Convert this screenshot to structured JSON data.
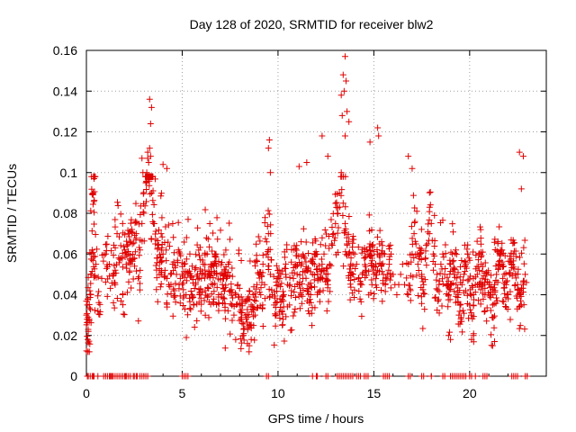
{
  "chart_data": {
    "type": "scatter",
    "title": "Day 128 of 2020, SRMTID for receiver blw2",
    "xlabel": "GPS time / hours",
    "ylabel": "SRMTID / TECUs",
    "xlim": [
      0,
      24
    ],
    "ylim": [
      0,
      0.16
    ],
    "grid": true,
    "marker": "+",
    "color": "#e00000",
    "x_ticks": [
      0,
      5,
      10,
      15,
      20
    ],
    "x_tick_labels": [
      "0",
      "5",
      "10",
      "15",
      "20"
    ],
    "y_ticks": [
      0,
      0.02,
      0.04,
      0.06,
      0.08,
      0.1,
      0.12,
      0.14,
      0.16
    ],
    "y_tick_labels": [
      "0",
      "0.02",
      "0.04",
      "0.06",
      "0.08",
      "0.1",
      "0.12",
      "0.14",
      "0.16"
    ],
    "series": [
      {
        "name": "SRMTID",
        "x": [
          0.0,
          0.05,
          0.1,
          0.15,
          0.2,
          0.25,
          0.3,
          0.35,
          0.4,
          0.5,
          0.6,
          0.8,
          1.0,
          1.2,
          1.4,
          1.5,
          1.6,
          1.8,
          1.9,
          2.0,
          2.1,
          2.2,
          2.3,
          2.4,
          2.5,
          2.6,
          2.7,
          2.8,
          2.9,
          3.0,
          3.1,
          3.2,
          3.3,
          3.35,
          3.4,
          3.5,
          3.6,
          3.7,
          3.8,
          3.9,
          4.0,
          4.1,
          4.2,
          4.3,
          4.4,
          4.5,
          4.6,
          4.7,
          4.8,
          4.9,
          5.0,
          5.1,
          5.2,
          5.3,
          5.4,
          5.5,
          5.6,
          5.7,
          5.8,
          5.9,
          6.0,
          6.1,
          6.2,
          6.3,
          6.4,
          6.5,
          6.6,
          6.7,
          6.8,
          6.9,
          7.0,
          7.1,
          7.2,
          7.3,
          7.4,
          7.5,
          7.6,
          7.7,
          7.8,
          7.9,
          8.0,
          8.1,
          8.2,
          8.3,
          8.4,
          8.5,
          8.6,
          8.7,
          8.8,
          8.9,
          9.0,
          9.1,
          9.2,
          9.3,
          9.4,
          9.5,
          9.6,
          9.7,
          9.8,
          9.9,
          10.0,
          10.1,
          10.2,
          10.3,
          10.4,
          10.5,
          10.6,
          10.7,
          10.8,
          10.9,
          11.0,
          11.1,
          11.2,
          11.3,
          11.4,
          11.5,
          11.6,
          11.7,
          11.8,
          11.9,
          12.0,
          12.1,
          12.2,
          12.3,
          12.4,
          12.5,
          12.6,
          12.7,
          12.8,
          12.9,
          13.0,
          13.1,
          13.2,
          13.3,
          13.4,
          13.5,
          13.6,
          13.7,
          13.8,
          13.9,
          14.0,
          14.1,
          14.2,
          14.3,
          14.4,
          14.5,
          14.6,
          14.7,
          14.8,
          14.9,
          15.0,
          15.1,
          15.2,
          15.3,
          15.4,
          15.5,
          15.6,
          15.7,
          15.8,
          15.9,
          16.0,
          16.1,
          16.2,
          16.3,
          16.4,
          16.5,
          16.6,
          16.8,
          17.0,
          17.1,
          17.2,
          17.3,
          17.4,
          17.5,
          17.6,
          17.7,
          17.8,
          17.9,
          18.0,
          18.1,
          18.2,
          18.3,
          18.4,
          18.5,
          18.6,
          18.7,
          18.8,
          18.9,
          19.0,
          19.1,
          19.2,
          19.3,
          19.4,
          19.5,
          19.6,
          19.7,
          19.8,
          19.9,
          20.0,
          20.1,
          20.2,
          20.3,
          20.4,
          20.5,
          20.6,
          20.7,
          20.8,
          20.9,
          21.0,
          21.1,
          21.2,
          21.3,
          21.4,
          21.5,
          21.6,
          21.7,
          21.8,
          21.9,
          22.0,
          22.1,
          22.2,
          22.3,
          22.4,
          22.5,
          22.6,
          22.7,
          22.8,
          22.9,
          3.3,
          3.35,
          3.4,
          3.2,
          3.25,
          3.15,
          13.4,
          13.5,
          13.55,
          13.6,
          13.7,
          13.5,
          13.45,
          9.55,
          9.6,
          9.5,
          15.2,
          15.25,
          11.1,
          11.5,
          12.3,
          12.6,
          2.9,
          2.95,
          4.0,
          4.2,
          16.8,
          17.0,
          22.6,
          22.8,
          22.7,
          13.3,
          13.35,
          14.8,
          8.5,
          8.6,
          8.4,
          20.1,
          20.2,
          21.3,
          21.2,
          18.9,
          19.0
        ],
        "y": [
          0.03,
          0.035,
          0.022,
          0.028,
          0.04,
          0.05,
          0.062,
          0.09,
          0.097,
          0.055,
          0.032,
          0.048,
          0.06,
          0.055,
          0.05,
          0.045,
          0.07,
          0.058,
          0.04,
          0.062,
          0.053,
          0.07,
          0.055,
          0.065,
          0.058,
          0.07,
          0.048,
          0.062,
          0.075,
          0.08,
          0.095,
          0.107,
          0.112,
          0.108,
          0.09,
          0.075,
          0.065,
          0.058,
          0.05,
          0.07,
          0.06,
          0.052,
          0.048,
          0.045,
          0.05,
          0.055,
          0.042,
          0.05,
          0.062,
          0.048,
          0.045,
          0.055,
          0.04,
          0.05,
          0.06,
          0.04,
          0.035,
          0.045,
          0.05,
          0.04,
          0.048,
          0.055,
          0.042,
          0.06,
          0.05,
          0.055,
          0.045,
          0.06,
          0.05,
          0.04,
          0.05,
          0.045,
          0.038,
          0.048,
          0.055,
          0.042,
          0.035,
          0.03,
          0.04,
          0.045,
          0.035,
          0.028,
          0.02,
          0.03,
          0.038,
          0.025,
          0.035,
          0.04,
          0.03,
          0.045,
          0.05,
          0.04,
          0.035,
          0.045,
          0.06,
          0.07,
          0.05,
          0.04,
          0.035,
          0.03,
          0.045,
          0.038,
          0.032,
          0.04,
          0.05,
          0.045,
          0.035,
          0.042,
          0.048,
          0.055,
          0.05,
          0.045,
          0.04,
          0.048,
          0.058,
          0.052,
          0.045,
          0.04,
          0.05,
          0.055,
          0.06,
          0.048,
          0.042,
          0.055,
          0.06,
          0.05,
          0.045,
          0.055,
          0.065,
          0.07,
          0.075,
          0.08,
          0.09,
          0.1,
          0.085,
          0.075,
          0.065,
          0.06,
          0.055,
          0.05,
          0.06,
          0.055,
          0.048,
          0.045,
          0.05,
          0.058,
          0.052,
          0.06,
          0.065,
          0.045,
          0.05,
          0.055,
          0.06,
          0.065,
          0.055,
          0.05,
          0.045,
          0.05,
          0.055,
          0.06,
          0.05,
          0.045,
          0.04,
          0.045,
          0.05,
          0.055,
          0.045,
          0.04,
          0.06,
          0.07,
          0.065,
          0.055,
          0.06,
          0.05,
          0.045,
          0.058,
          0.065,
          0.07,
          0.075,
          0.06,
          0.055,
          0.05,
          0.045,
          0.055,
          0.06,
          0.05,
          0.045,
          0.04,
          0.055,
          0.06,
          0.05,
          0.045,
          0.04,
          0.035,
          0.045,
          0.05,
          0.055,
          0.06,
          0.035,
          0.03,
          0.04,
          0.045,
          0.05,
          0.06,
          0.055,
          0.045,
          0.04,
          0.05,
          0.045,
          0.04,
          0.035,
          0.045,
          0.05,
          0.055,
          0.06,
          0.055,
          0.05,
          0.045,
          0.04,
          0.05,
          0.055,
          0.06,
          0.05,
          0.045,
          0.04,
          0.035,
          0.045,
          0.05,
          0.136,
          0.124,
          0.132,
          0.11,
          0.105,
          0.1,
          0.148,
          0.157,
          0.145,
          0.13,
          0.125,
          0.118,
          0.14,
          0.116,
          0.1,
          0.112,
          0.122,
          0.118,
          0.103,
          0.105,
          0.118,
          0.108,
          0.107,
          0.1,
          0.104,
          0.102,
          0.108,
          0.102,
          0.11,
          0.108,
          0.092,
          0.138,
          0.128,
          0.115,
          0.015,
          0.018,
          0.016,
          0.018,
          0.02,
          0.017,
          0.015,
          0.02,
          0.018
        ]
      }
    ],
    "zero_points_x": [
      0.05,
      0.1,
      0.2,
      0.3,
      0.35,
      0.4,
      0.6,
      0.9,
      1.0,
      1.1,
      1.2,
      1.25,
      1.3,
      1.35,
      1.4,
      1.5,
      1.6,
      1.7,
      1.8,
      1.9,
      2.0,
      2.05,
      2.1,
      2.2,
      2.3,
      2.45,
      2.5,
      2.6,
      2.65,
      2.8,
      2.9,
      3.0,
      3.1,
      3.2,
      5.0,
      5.1,
      5.2,
      5.3,
      9.4,
      9.5,
      11.8,
      12.0,
      12.05,
      12.5,
      12.6,
      13.1,
      13.2,
      13.3,
      13.4,
      13.5,
      13.6,
      13.7,
      13.8,
      13.9,
      14.1,
      14.2,
      14.3,
      14.5,
      14.6,
      14.7,
      15.5,
      15.6,
      15.7,
      15.8,
      16.8,
      16.9,
      17.5,
      17.6,
      18.0,
      18.6,
      18.7,
      19.0,
      19.1,
      19.2,
      19.3,
      19.4,
      19.5,
      19.6,
      19.7,
      19.8,
      20.0,
      20.1,
      20.3,
      20.7,
      20.8,
      20.9,
      22.2,
      22.3,
      22.4,
      22.5,
      22.9,
      23.0
    ]
  }
}
